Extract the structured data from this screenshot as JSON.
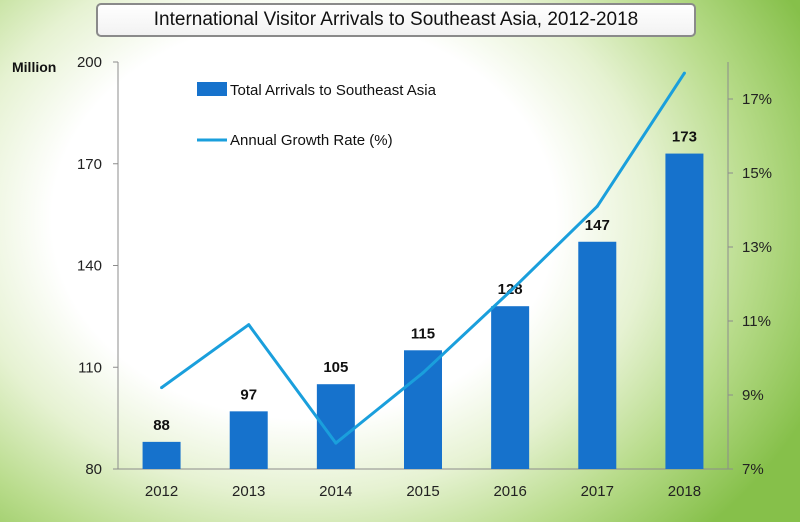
{
  "chart_data": {
    "type": "bar",
    "title": "International Visitor Arrivals to Southeast Asia, 2012-2018",
    "y_unit": "Million",
    "categories": [
      "2012",
      "2013",
      "2014",
      "2015",
      "2016",
      "2017",
      "2018"
    ],
    "series": [
      {
        "name": "Total Arrivals to Southeast Asia",
        "type": "bar",
        "axis": "left",
        "color": "#1672cc",
        "values": [
          88,
          97,
          105,
          115,
          128,
          147,
          173
        ],
        "labels": [
          "88",
          "97",
          "105",
          "115",
          "128",
          "147",
          "173"
        ]
      },
      {
        "name": "Annual Growth Rate (%)",
        "type": "line",
        "axis": "right",
        "color": "#1a9fdc",
        "values": [
          9.2,
          10.9,
          7.7,
          9.6,
          11.8,
          14.1,
          17.7
        ]
      }
    ],
    "y_left": {
      "min": 80,
      "max": 200,
      "ticks": [
        "80",
        "110",
        "140",
        "170",
        "200"
      ],
      "tick_values": [
        80,
        110,
        140,
        170,
        200
      ]
    },
    "y_right": {
      "min": 7,
      "max": 18,
      "ticks": [
        "7%",
        "9%",
        "11%",
        "13%",
        "15%",
        "17%"
      ],
      "tick_values": [
        7,
        9,
        11,
        13,
        15,
        17
      ]
    },
    "grid": false,
    "legend_position": "top-left"
  }
}
